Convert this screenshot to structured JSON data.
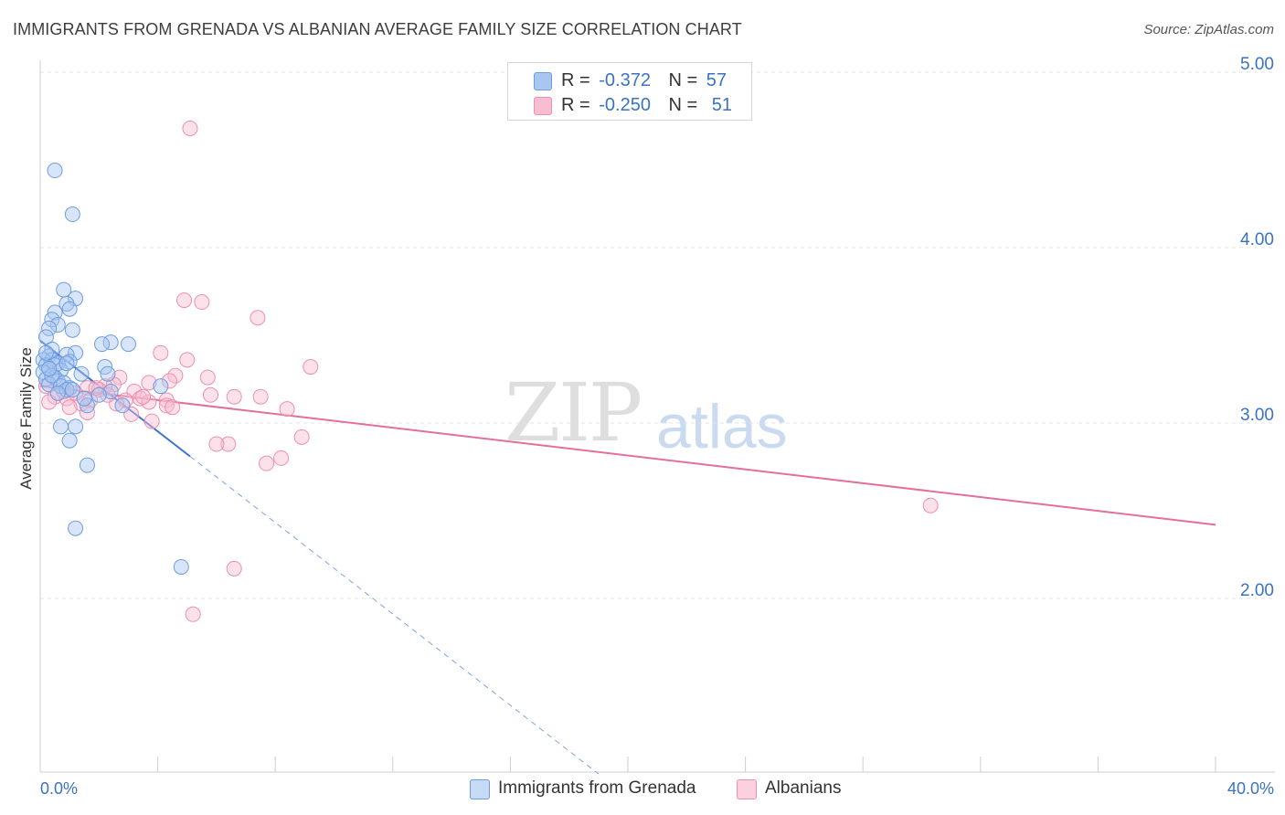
{
  "header": {
    "title": "IMMIGRANTS FROM GRENADA VS ALBANIAN AVERAGE FAMILY SIZE CORRELATION CHART",
    "source": "Source: ZipAtlas.com"
  },
  "watermark": {
    "zip": "ZIP",
    "atlas": "atlas"
  },
  "legend": {
    "rows": [
      {
        "r_label": "R =",
        "r_value": "-0.372",
        "n_label": "N =",
        "n_value": "57",
        "color": "#a9c6f0",
        "border": "#6d9de0"
      },
      {
        "r_label": "R =",
        "r_value": "-0.250",
        "n_label": "N =",
        "n_value": "51",
        "color": "#f7bdd0",
        "border": "#ee8fae"
      }
    ]
  },
  "bottom_legend": {
    "items": [
      {
        "label": "Immigrants from Grenada",
        "color": "#c7dbf6",
        "border": "#6d9de0"
      },
      {
        "label": "Albanians",
        "color": "#fbd1df",
        "border": "#ee8fae"
      }
    ]
  },
  "chart_data": {
    "type": "scatter",
    "title": "IMMIGRANTS FROM GRENADA VS ALBANIAN AVERAGE FAMILY SIZE CORRELATION CHART",
    "xlabel": "",
    "ylabel": "Average Family Size",
    "xlim": [
      0,
      40
    ],
    "ylim": [
      1.0,
      5.15
    ],
    "x_tick_labels": [
      "0.0%",
      "40.0%"
    ],
    "y_ticks": [
      2.0,
      3.0,
      4.0,
      5.0
    ],
    "y_tick_labels": [
      "2.00",
      "3.00",
      "4.00",
      "5.00"
    ],
    "grid": true,
    "series": [
      {
        "name": "Immigrants from Grenada",
        "color": "#6d9de0",
        "fill": "#a9c6f0",
        "trend": {
          "x_start": 0.0,
          "y_start": 3.47,
          "x_solid_end": 5.1,
          "y_solid_end": 2.81,
          "x_dash_end": 19.0,
          "y_dash_end": 1.0
        },
        "points": [
          [
            0.5,
            4.44
          ],
          [
            1.1,
            4.19
          ],
          [
            0.8,
            3.76
          ],
          [
            1.2,
            3.71
          ],
          [
            0.9,
            3.68
          ],
          [
            1.0,
            3.65
          ],
          [
            0.5,
            3.63
          ],
          [
            0.4,
            3.59
          ],
          [
            0.6,
            3.56
          ],
          [
            0.3,
            3.54
          ],
          [
            1.1,
            3.53
          ],
          [
            0.2,
            3.49
          ],
          [
            2.4,
            3.46
          ],
          [
            3.0,
            3.45
          ],
          [
            2.1,
            3.45
          ],
          [
            0.4,
            3.42
          ],
          [
            1.2,
            3.4
          ],
          [
            0.9,
            3.39
          ],
          [
            0.3,
            3.38
          ],
          [
            0.1,
            3.36
          ],
          [
            0.4,
            3.36
          ],
          [
            1.0,
            3.35
          ],
          [
            0.6,
            3.34
          ],
          [
            0.2,
            3.33
          ],
          [
            0.5,
            3.33
          ],
          [
            2.2,
            3.32
          ],
          [
            0.3,
            3.31
          ],
          [
            0.7,
            3.3
          ],
          [
            0.1,
            3.29
          ],
          [
            1.4,
            3.28
          ],
          [
            2.3,
            3.28
          ],
          [
            0.5,
            3.26
          ],
          [
            0.2,
            3.25
          ],
          [
            0.6,
            3.24
          ],
          [
            0.8,
            3.23
          ],
          [
            0.3,
            3.22
          ],
          [
            0.7,
            3.21
          ],
          [
            1.0,
            3.2
          ],
          [
            0.9,
            3.19
          ],
          [
            4.1,
            3.21
          ],
          [
            2.4,
            3.18
          ],
          [
            0.6,
            3.17
          ],
          [
            1.1,
            3.19
          ],
          [
            2.8,
            3.1
          ],
          [
            1.6,
            3.1
          ],
          [
            0.7,
            2.98
          ],
          [
            1.2,
            2.98
          ],
          [
            1.0,
            2.9
          ],
          [
            1.6,
            2.76
          ],
          [
            1.2,
            2.4
          ],
          [
            4.8,
            2.18
          ],
          [
            0.2,
            3.4
          ],
          [
            0.9,
            3.34
          ],
          [
            0.4,
            3.27
          ],
          [
            1.5,
            3.14
          ],
          [
            2.0,
            3.16
          ],
          [
            0.3,
            3.31
          ]
        ]
      },
      {
        "name": "Albanians",
        "color": "#ee8fae",
        "fill": "#f7bdd0",
        "trend": {
          "x_start": 0.0,
          "y_start": 3.21,
          "x_end": 40.0,
          "y_end": 2.42
        },
        "points": [
          [
            5.1,
            4.68
          ],
          [
            4.9,
            3.7
          ],
          [
            5.5,
            3.69
          ],
          [
            7.4,
            3.6
          ],
          [
            4.1,
            3.4
          ],
          [
            5.0,
            3.36
          ],
          [
            9.2,
            3.32
          ],
          [
            3.7,
            3.23
          ],
          [
            4.6,
            3.27
          ],
          [
            5.7,
            3.26
          ],
          [
            2.7,
            3.26
          ],
          [
            4.4,
            3.24
          ],
          [
            2.5,
            3.22
          ],
          [
            2.2,
            3.21
          ],
          [
            1.6,
            3.2
          ],
          [
            2.0,
            3.19
          ],
          [
            3.2,
            3.18
          ],
          [
            0.2,
            3.21
          ],
          [
            5.8,
            3.16
          ],
          [
            6.6,
            3.15
          ],
          [
            7.5,
            3.15
          ],
          [
            0.5,
            3.15
          ],
          [
            0.9,
            3.14
          ],
          [
            3.4,
            3.14
          ],
          [
            4.3,
            3.13
          ],
          [
            1.7,
            3.13
          ],
          [
            2.9,
            3.13
          ],
          [
            0.3,
            3.12
          ],
          [
            3.7,
            3.12
          ],
          [
            2.6,
            3.11
          ],
          [
            1.4,
            3.11
          ],
          [
            4.3,
            3.1
          ],
          [
            4.5,
            3.09
          ],
          [
            8.4,
            3.08
          ],
          [
            1.6,
            3.06
          ],
          [
            3.1,
            3.05
          ],
          [
            3.8,
            3.01
          ],
          [
            8.9,
            2.92
          ],
          [
            6.4,
            2.88
          ],
          [
            6.0,
            2.88
          ],
          [
            8.2,
            2.8
          ],
          [
            7.7,
            2.77
          ],
          [
            30.3,
            2.53
          ],
          [
            6.6,
            2.17
          ],
          [
            5.2,
            1.91
          ],
          [
            1.2,
            3.17
          ],
          [
            2.3,
            3.16
          ],
          [
            0.8,
            3.18
          ],
          [
            1.9,
            3.2
          ],
          [
            3.5,
            3.15
          ],
          [
            1.0,
            3.09
          ]
        ]
      }
    ]
  }
}
